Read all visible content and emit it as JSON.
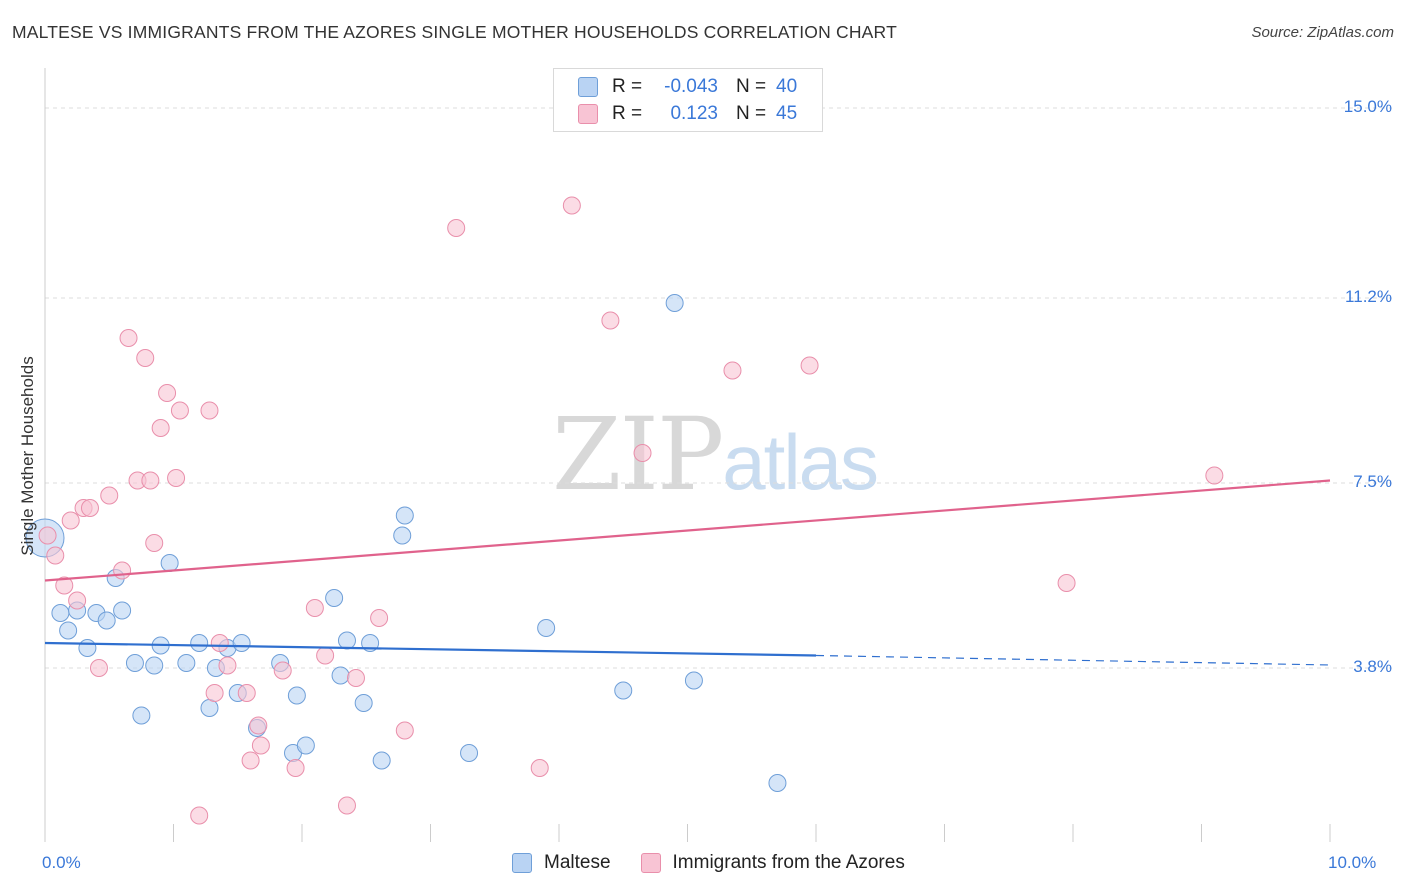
{
  "header": {
    "title": "MALTESE VS IMMIGRANTS FROM THE AZORES SINGLE MOTHER HOUSEHOLDS CORRELATION CHART",
    "source": "Source: ZipAtlas.com"
  },
  "watermark": {
    "zip": "ZIP",
    "atlas": "atlas"
  },
  "legend": {
    "rows": [
      {
        "r_label": "R =",
        "r_value": "-0.043",
        "n_label": "N =",
        "n_value": "40"
      },
      {
        "r_label": "R =",
        "r_value": "0.123",
        "n_label": "N =",
        "n_value": "45"
      }
    ]
  },
  "bottom_legend": {
    "maltese": "Maltese",
    "azores": "Immigrants from the Azores"
  },
  "colors": {
    "maltese_fill": "#b9d3f3",
    "maltese_stroke": "#6f9fd8",
    "maltese_line": "#2f6fcf",
    "azores_fill": "#f8c4d4",
    "azores_stroke": "#e98fab",
    "azores_line": "#e0628c",
    "grid": "#dddddd",
    "tick_text": "#3a78d8"
  },
  "chart_data": {
    "type": "scatter",
    "title": "MALTESE VS IMMIGRANTS FROM THE AZORES SINGLE MOTHER HOUSEHOLDS CORRELATION CHART",
    "xlabel": "",
    "ylabel": "Single Mother Households",
    "xlim": [
      0,
      10
    ],
    "ylim": [
      0.6,
      15.6
    ],
    "x_tick_labels": [
      {
        "value": 0,
        "label": "0.0%"
      },
      {
        "value": 10,
        "label": "10.0%"
      }
    ],
    "y_tick_labels": [
      {
        "value": 3.8,
        "label": "3.8%"
      },
      {
        "value": 7.5,
        "label": "7.5%"
      },
      {
        "value": 11.2,
        "label": "11.2%"
      },
      {
        "value": 15.0,
        "label": "15.0%"
      }
    ],
    "series": [
      {
        "name": "Maltese",
        "r": -0.043,
        "n": 40,
        "trend": {
          "x_start": 0,
          "y_start": 4.3,
          "x_solid_end": 6.0,
          "y_solid_end": 4.05,
          "x_end": 10,
          "y_end": 3.86
        },
        "points": [
          [
            0.0,
            6.4
          ],
          [
            0.12,
            4.9
          ],
          [
            0.18,
            4.55
          ],
          [
            0.25,
            4.95
          ],
          [
            0.33,
            4.2
          ],
          [
            0.4,
            4.9
          ],
          [
            0.48,
            4.75
          ],
          [
            0.55,
            5.6
          ],
          [
            0.6,
            4.95
          ],
          [
            0.7,
            3.9
          ],
          [
            0.75,
            2.85
          ],
          [
            0.85,
            3.85
          ],
          [
            0.9,
            4.25
          ],
          [
            0.97,
            5.9
          ],
          [
            1.1,
            3.9
          ],
          [
            1.2,
            4.3
          ],
          [
            1.28,
            3.0
          ],
          [
            1.33,
            3.8
          ],
          [
            1.42,
            4.2
          ],
          [
            1.5,
            3.3
          ],
          [
            1.53,
            4.3
          ],
          [
            1.65,
            2.6
          ],
          [
            1.83,
            3.9
          ],
          [
            1.93,
            2.1
          ],
          [
            1.96,
            3.25
          ],
          [
            2.03,
            2.25
          ],
          [
            2.25,
            5.2
          ],
          [
            2.3,
            3.65
          ],
          [
            2.35,
            4.35
          ],
          [
            2.48,
            3.1
          ],
          [
            2.53,
            4.3
          ],
          [
            2.62,
            1.95
          ],
          [
            2.78,
            6.45
          ],
          [
            2.8,
            6.85
          ],
          [
            3.3,
            2.1
          ],
          [
            3.9,
            4.6
          ],
          [
            4.5,
            3.35
          ],
          [
            4.9,
            11.1
          ],
          [
            5.05,
            3.55
          ],
          [
            5.7,
            1.5
          ]
        ]
      },
      {
        "name": "Immigrants from the Azores",
        "r": 0.123,
        "n": 45,
        "trend": {
          "x_start": 0,
          "y_start": 5.55,
          "x_end": 10,
          "y_end": 7.55
        },
        "points": [
          [
            0.02,
            6.45
          ],
          [
            0.08,
            6.05
          ],
          [
            0.15,
            5.45
          ],
          [
            0.2,
            6.75
          ],
          [
            0.25,
            5.15
          ],
          [
            0.3,
            7.0
          ],
          [
            0.35,
            7.0
          ],
          [
            0.42,
            3.8
          ],
          [
            0.5,
            7.25
          ],
          [
            0.6,
            5.75
          ],
          [
            0.65,
            10.4
          ],
          [
            0.72,
            7.55
          ],
          [
            0.78,
            10.0
          ],
          [
            0.82,
            7.55
          ],
          [
            0.85,
            6.3
          ],
          [
            0.9,
            8.6
          ],
          [
            0.95,
            9.3
          ],
          [
            1.02,
            7.6
          ],
          [
            1.05,
            8.95
          ],
          [
            1.2,
            0.85
          ],
          [
            1.28,
            8.95
          ],
          [
            1.32,
            3.3
          ],
          [
            1.36,
            4.3
          ],
          [
            1.42,
            3.85
          ],
          [
            1.57,
            3.3
          ],
          [
            1.6,
            1.95
          ],
          [
            1.66,
            2.65
          ],
          [
            1.68,
            2.25
          ],
          [
            1.85,
            3.75
          ],
          [
            1.95,
            1.8
          ],
          [
            2.1,
            5.0
          ],
          [
            2.18,
            4.05
          ],
          [
            2.35,
            1.05
          ],
          [
            2.42,
            3.6
          ],
          [
            2.6,
            4.8
          ],
          [
            2.8,
            2.55
          ],
          [
            3.2,
            12.6
          ],
          [
            3.85,
            1.8
          ],
          [
            4.1,
            13.05
          ],
          [
            4.4,
            10.75
          ],
          [
            4.65,
            8.1
          ],
          [
            5.35,
            9.75
          ],
          [
            5.95,
            9.85
          ],
          [
            7.95,
            5.5
          ],
          [
            9.1,
            7.65
          ]
        ]
      }
    ]
  }
}
